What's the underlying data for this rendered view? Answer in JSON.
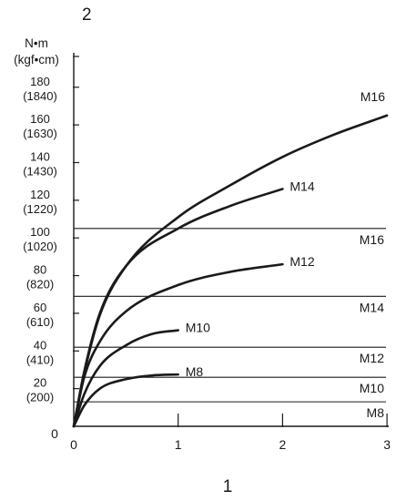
{
  "chart_data": {
    "type": "line",
    "figure_label_top": "2",
    "figure_label_bottom": "1",
    "ylabel": [
      "N•m",
      "(kgf•cm)"
    ],
    "xlim": [
      0,
      3
    ],
    "ylim": [
      0,
      200
    ],
    "x_ticks": [
      "0",
      "1",
      "2",
      "3"
    ],
    "y_origin_label": "0",
    "y_ticks": [
      {
        "value": 20,
        "nm": "20",
        "kgf": "(200)"
      },
      {
        "value": 40,
        "nm": "40",
        "kgf": "(410)"
      },
      {
        "value": 60,
        "nm": "60",
        "kgf": "(610)"
      },
      {
        "value": 80,
        "nm": "80",
        "kgf": "(820)"
      },
      {
        "value": 100,
        "nm": "100",
        "kgf": "(1020)"
      },
      {
        "value": 120,
        "nm": "120",
        "kgf": "(1220)"
      },
      {
        "value": 140,
        "nm": "140",
        "kgf": "(1430)"
      },
      {
        "value": 160,
        "nm": "160",
        "kgf": "(1630)"
      },
      {
        "value": 180,
        "nm": "180",
        "kgf": "(1840)"
      }
    ],
    "series": [
      {
        "name": "M8",
        "x": [
          0,
          0.1,
          0.25,
          0.5,
          0.75,
          1.0
        ],
        "y": [
          0,
          11,
          20,
          25,
          27,
          27.5
        ]
      },
      {
        "name": "M10",
        "x": [
          0,
          0.1,
          0.25,
          0.5,
          0.75,
          1.0
        ],
        "y": [
          0,
          17,
          32,
          43,
          49,
          51
        ]
      },
      {
        "name": "M12",
        "x": [
          0,
          0.1,
          0.25,
          0.5,
          1.0,
          1.5,
          2.0
        ],
        "y": [
          0,
          26,
          45,
          61,
          75,
          82,
          86
        ]
      },
      {
        "name": "M14",
        "x": [
          0,
          0.1,
          0.25,
          0.5,
          1.0,
          1.5,
          2.0
        ],
        "y": [
          0,
          29,
          60,
          85,
          105,
          117,
          126
        ]
      },
      {
        "name": "M16",
        "x": [
          0,
          0.1,
          0.25,
          0.5,
          1.0,
          1.5,
          2.0,
          2.5,
          3.0
        ],
        "y": [
          0,
          28,
          59,
          85,
          111,
          128,
          143,
          155,
          165
        ]
      }
    ],
    "reference_lines": [
      {
        "name": "M16",
        "y": 105
      },
      {
        "name": "M14",
        "y": 69
      },
      {
        "name": "M12",
        "y": 42
      },
      {
        "name": "M10",
        "y": 26
      },
      {
        "name": "M8",
        "y": 13
      }
    ],
    "grid": false
  }
}
